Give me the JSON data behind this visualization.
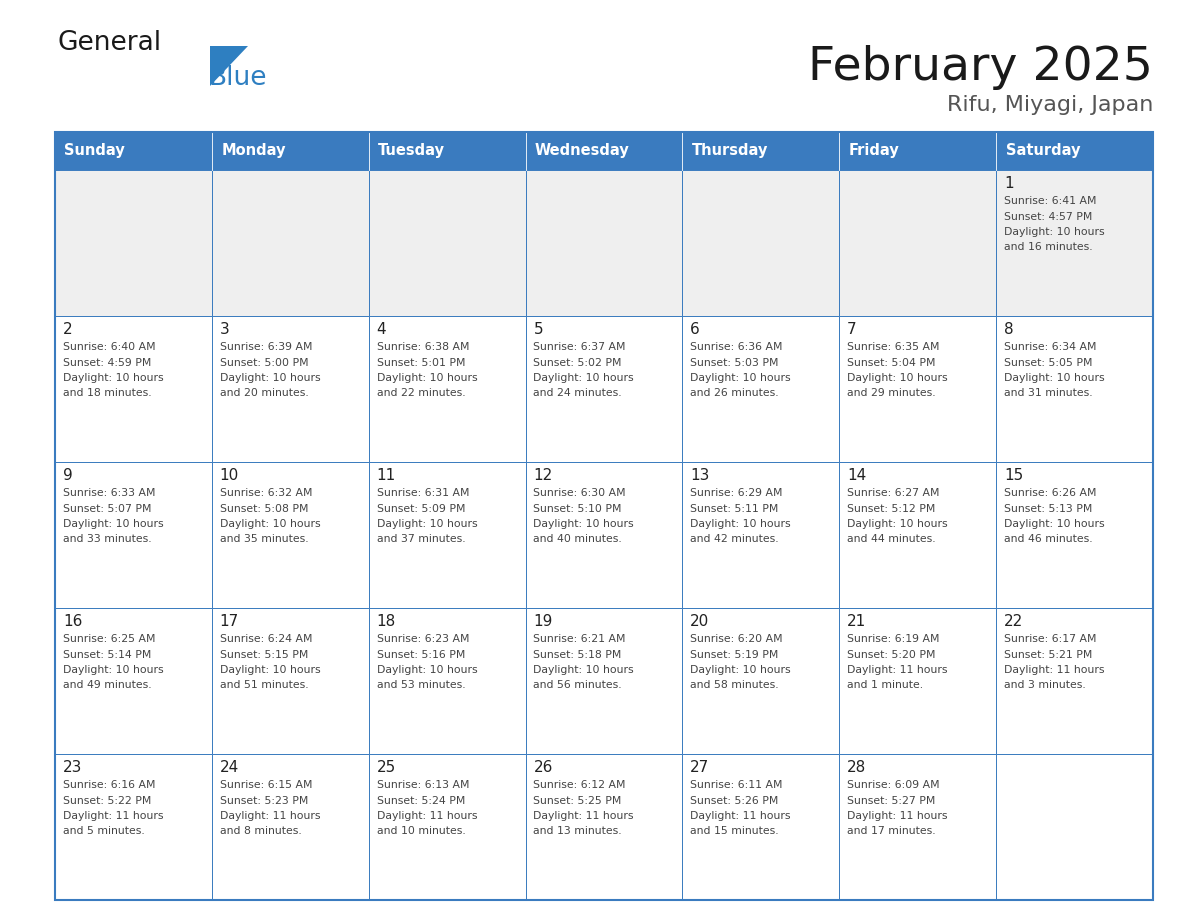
{
  "title": "February 2025",
  "subtitle": "Rifu, Miyagi, Japan",
  "header_color": "#3a7bbf",
  "header_text_color": "#ffffff",
  "day_names": [
    "Sunday",
    "Monday",
    "Tuesday",
    "Wednesday",
    "Thursday",
    "Friday",
    "Saturday"
  ],
  "background_color": "#ffffff",
  "cell_bg_color": "#ffffff",
  "first_row_bg": "#efefef",
  "border_color": "#3a7bbf",
  "day_number_color": "#222222",
  "info_text_color": "#444444",
  "title_color": "#1a1a1a",
  "subtitle_color": "#555555",
  "logo_general_color": "#1a1a1a",
  "logo_blue_color": "#2e7fc1",
  "calendar_data": [
    [
      {
        "day": null,
        "info": ""
      },
      {
        "day": null,
        "info": ""
      },
      {
        "day": null,
        "info": ""
      },
      {
        "day": null,
        "info": ""
      },
      {
        "day": null,
        "info": ""
      },
      {
        "day": null,
        "info": ""
      },
      {
        "day": 1,
        "info": "Sunrise: 6:41 AM\nSunset: 4:57 PM\nDaylight: 10 hours\nand 16 minutes."
      }
    ],
    [
      {
        "day": 2,
        "info": "Sunrise: 6:40 AM\nSunset: 4:59 PM\nDaylight: 10 hours\nand 18 minutes."
      },
      {
        "day": 3,
        "info": "Sunrise: 6:39 AM\nSunset: 5:00 PM\nDaylight: 10 hours\nand 20 minutes."
      },
      {
        "day": 4,
        "info": "Sunrise: 6:38 AM\nSunset: 5:01 PM\nDaylight: 10 hours\nand 22 minutes."
      },
      {
        "day": 5,
        "info": "Sunrise: 6:37 AM\nSunset: 5:02 PM\nDaylight: 10 hours\nand 24 minutes."
      },
      {
        "day": 6,
        "info": "Sunrise: 6:36 AM\nSunset: 5:03 PM\nDaylight: 10 hours\nand 26 minutes."
      },
      {
        "day": 7,
        "info": "Sunrise: 6:35 AM\nSunset: 5:04 PM\nDaylight: 10 hours\nand 29 minutes."
      },
      {
        "day": 8,
        "info": "Sunrise: 6:34 AM\nSunset: 5:05 PM\nDaylight: 10 hours\nand 31 minutes."
      }
    ],
    [
      {
        "day": 9,
        "info": "Sunrise: 6:33 AM\nSunset: 5:07 PM\nDaylight: 10 hours\nand 33 minutes."
      },
      {
        "day": 10,
        "info": "Sunrise: 6:32 AM\nSunset: 5:08 PM\nDaylight: 10 hours\nand 35 minutes."
      },
      {
        "day": 11,
        "info": "Sunrise: 6:31 AM\nSunset: 5:09 PM\nDaylight: 10 hours\nand 37 minutes."
      },
      {
        "day": 12,
        "info": "Sunrise: 6:30 AM\nSunset: 5:10 PM\nDaylight: 10 hours\nand 40 minutes."
      },
      {
        "day": 13,
        "info": "Sunrise: 6:29 AM\nSunset: 5:11 PM\nDaylight: 10 hours\nand 42 minutes."
      },
      {
        "day": 14,
        "info": "Sunrise: 6:27 AM\nSunset: 5:12 PM\nDaylight: 10 hours\nand 44 minutes."
      },
      {
        "day": 15,
        "info": "Sunrise: 6:26 AM\nSunset: 5:13 PM\nDaylight: 10 hours\nand 46 minutes."
      }
    ],
    [
      {
        "day": 16,
        "info": "Sunrise: 6:25 AM\nSunset: 5:14 PM\nDaylight: 10 hours\nand 49 minutes."
      },
      {
        "day": 17,
        "info": "Sunrise: 6:24 AM\nSunset: 5:15 PM\nDaylight: 10 hours\nand 51 minutes."
      },
      {
        "day": 18,
        "info": "Sunrise: 6:23 AM\nSunset: 5:16 PM\nDaylight: 10 hours\nand 53 minutes."
      },
      {
        "day": 19,
        "info": "Sunrise: 6:21 AM\nSunset: 5:18 PM\nDaylight: 10 hours\nand 56 minutes."
      },
      {
        "day": 20,
        "info": "Sunrise: 6:20 AM\nSunset: 5:19 PM\nDaylight: 10 hours\nand 58 minutes."
      },
      {
        "day": 21,
        "info": "Sunrise: 6:19 AM\nSunset: 5:20 PM\nDaylight: 11 hours\nand 1 minute."
      },
      {
        "day": 22,
        "info": "Sunrise: 6:17 AM\nSunset: 5:21 PM\nDaylight: 11 hours\nand 3 minutes."
      }
    ],
    [
      {
        "day": 23,
        "info": "Sunrise: 6:16 AM\nSunset: 5:22 PM\nDaylight: 11 hours\nand 5 minutes."
      },
      {
        "day": 24,
        "info": "Sunrise: 6:15 AM\nSunset: 5:23 PM\nDaylight: 11 hours\nand 8 minutes."
      },
      {
        "day": 25,
        "info": "Sunrise: 6:13 AM\nSunset: 5:24 PM\nDaylight: 11 hours\nand 10 minutes."
      },
      {
        "day": 26,
        "info": "Sunrise: 6:12 AM\nSunset: 5:25 PM\nDaylight: 11 hours\nand 13 minutes."
      },
      {
        "day": 27,
        "info": "Sunrise: 6:11 AM\nSunset: 5:26 PM\nDaylight: 11 hours\nand 15 minutes."
      },
      {
        "day": 28,
        "info": "Sunrise: 6:09 AM\nSunset: 5:27 PM\nDaylight: 11 hours\nand 17 minutes."
      },
      {
        "day": null,
        "info": ""
      }
    ]
  ]
}
